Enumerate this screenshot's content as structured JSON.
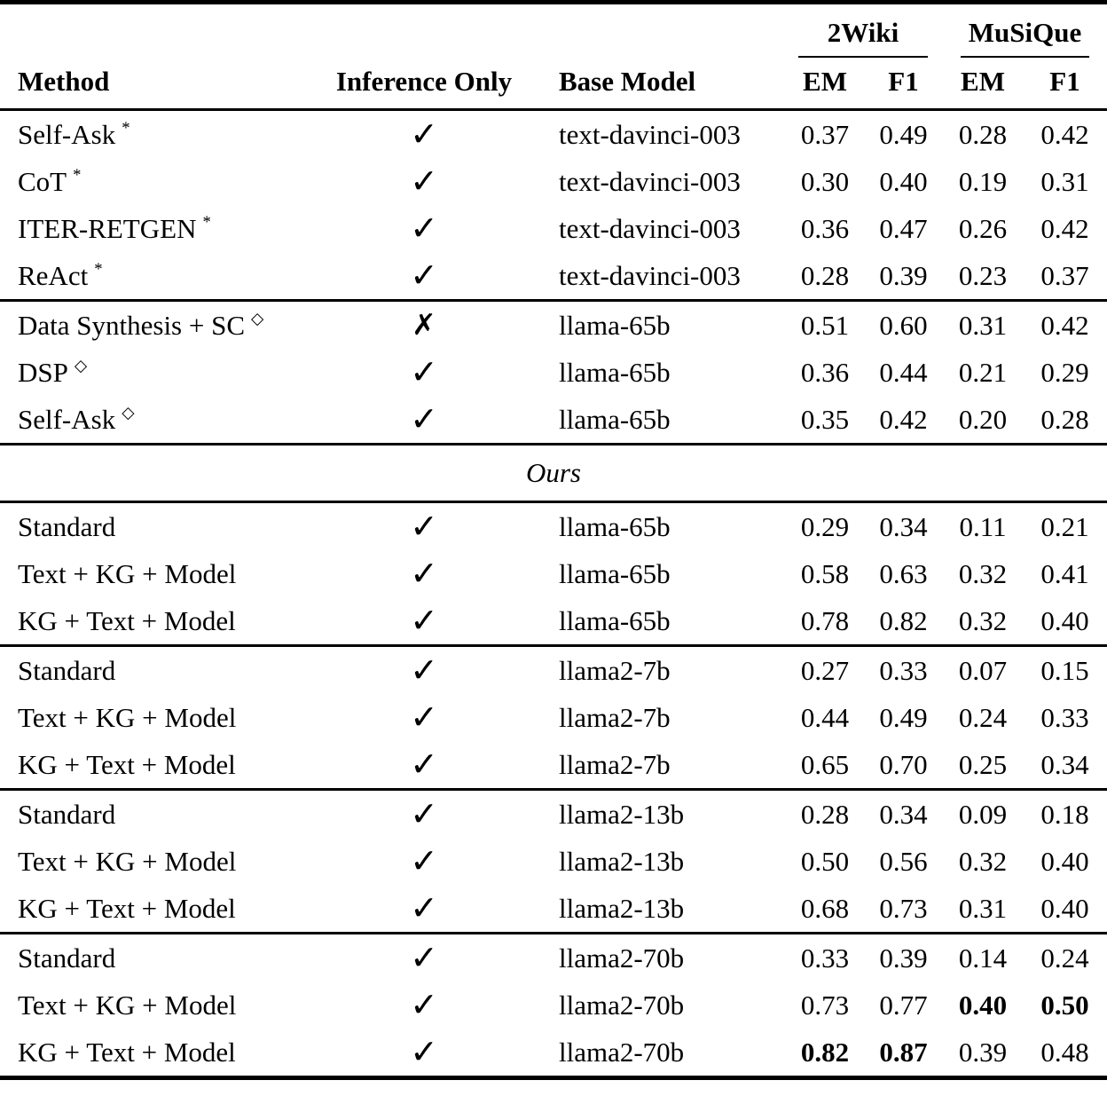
{
  "table": {
    "header": {
      "method": "Method",
      "inference_only": "Inference Only",
      "base_model": "Base Model",
      "dataset_groups": [
        {
          "name": "2Wiki",
          "metrics": [
            "EM",
            "F1"
          ]
        },
        {
          "name": "MuSiQue",
          "metrics": [
            "EM",
            "F1"
          ]
        }
      ]
    },
    "icons": {
      "check": "✓",
      "cross": "✗"
    },
    "groups": [
      {
        "rows": [
          {
            "method": "Self-Ask",
            "sup": "*",
            "inference_only": true,
            "model": "text-davinci-003",
            "scores": [
              "0.37",
              "0.49",
              "0.28",
              "0.42"
            ],
            "bold": []
          },
          {
            "method": "CoT",
            "sup": "*",
            "inference_only": true,
            "model": "text-davinci-003",
            "scores": [
              "0.30",
              "0.40",
              "0.19",
              "0.31"
            ],
            "bold": []
          },
          {
            "method": "ITER-RETGEN",
            "sup": "*",
            "inference_only": true,
            "model": "text-davinci-003",
            "scores": [
              "0.36",
              "0.47",
              "0.26",
              "0.42"
            ],
            "bold": []
          },
          {
            "method": "ReAct",
            "sup": "*",
            "inference_only": true,
            "model": "text-davinci-003",
            "scores": [
              "0.28",
              "0.39",
              "0.23",
              "0.37"
            ],
            "bold": []
          }
        ]
      },
      {
        "rows": [
          {
            "method": "Data Synthesis + SC",
            "sup": "◇",
            "inference_only": false,
            "model": "llama-65b",
            "scores": [
              "0.51",
              "0.60",
              "0.31",
              "0.42"
            ],
            "bold": []
          },
          {
            "method": "DSP",
            "sup": "◇",
            "inference_only": true,
            "model": "llama-65b",
            "scores": [
              "0.36",
              "0.44",
              "0.21",
              "0.29"
            ],
            "bold": []
          },
          {
            "method": "Self-Ask",
            "sup": "◇",
            "inference_only": true,
            "model": "llama-65b",
            "scores": [
              "0.35",
              "0.42",
              "0.20",
              "0.28"
            ],
            "bold": []
          }
        ]
      },
      {
        "section_before": "Ours",
        "rows": [
          {
            "method": "Standard",
            "sup": "",
            "inference_only": true,
            "model": "llama-65b",
            "scores": [
              "0.29",
              "0.34",
              "0.11",
              "0.21"
            ],
            "bold": []
          },
          {
            "method": "Text + KG + Model",
            "sup": "",
            "inference_only": true,
            "model": "llama-65b",
            "scores": [
              "0.58",
              "0.63",
              "0.32",
              "0.41"
            ],
            "bold": []
          },
          {
            "method": "KG + Text + Model",
            "sup": "",
            "inference_only": true,
            "model": "llama-65b",
            "scores": [
              "0.78",
              "0.82",
              "0.32",
              "0.40"
            ],
            "bold": []
          }
        ]
      },
      {
        "rows": [
          {
            "method": "Standard",
            "sup": "",
            "inference_only": true,
            "model": "llama2-7b",
            "scores": [
              "0.27",
              "0.33",
              "0.07",
              "0.15"
            ],
            "bold": []
          },
          {
            "method": "Text + KG + Model",
            "sup": "",
            "inference_only": true,
            "model": "llama2-7b",
            "scores": [
              "0.44",
              "0.49",
              "0.24",
              "0.33"
            ],
            "bold": []
          },
          {
            "method": "KG + Text + Model",
            "sup": "",
            "inference_only": true,
            "model": "llama2-7b",
            "scores": [
              "0.65",
              "0.70",
              "0.25",
              "0.34"
            ],
            "bold": []
          }
        ]
      },
      {
        "rows": [
          {
            "method": "Standard",
            "sup": "",
            "inference_only": true,
            "model": "llama2-13b",
            "scores": [
              "0.28",
              "0.34",
              "0.09",
              "0.18"
            ],
            "bold": []
          },
          {
            "method": "Text + KG + Model",
            "sup": "",
            "inference_only": true,
            "model": "llama2-13b",
            "scores": [
              "0.50",
              "0.56",
              "0.32",
              "0.40"
            ],
            "bold": []
          },
          {
            "method": "KG + Text + Model",
            "sup": "",
            "inference_only": true,
            "model": "llama2-13b",
            "scores": [
              "0.68",
              "0.73",
              "0.31",
              "0.40"
            ],
            "bold": []
          }
        ]
      },
      {
        "rows": [
          {
            "method": "Standard",
            "sup": "",
            "inference_only": true,
            "model": "llama2-70b",
            "scores": [
              "0.33",
              "0.39",
              "0.14",
              "0.24"
            ],
            "bold": []
          },
          {
            "method": "Text + KG + Model",
            "sup": "",
            "inference_only": true,
            "model": "llama2-70b",
            "scores": [
              "0.73",
              "0.77",
              "0.40",
              "0.50"
            ],
            "bold": [
              2,
              3
            ]
          },
          {
            "method": "KG + Text + Model",
            "sup": "",
            "inference_only": true,
            "model": "llama2-70b",
            "scores": [
              "0.82",
              "0.87",
              "0.39",
              "0.48"
            ],
            "bold": [
              0,
              1
            ]
          }
        ]
      }
    ]
  }
}
